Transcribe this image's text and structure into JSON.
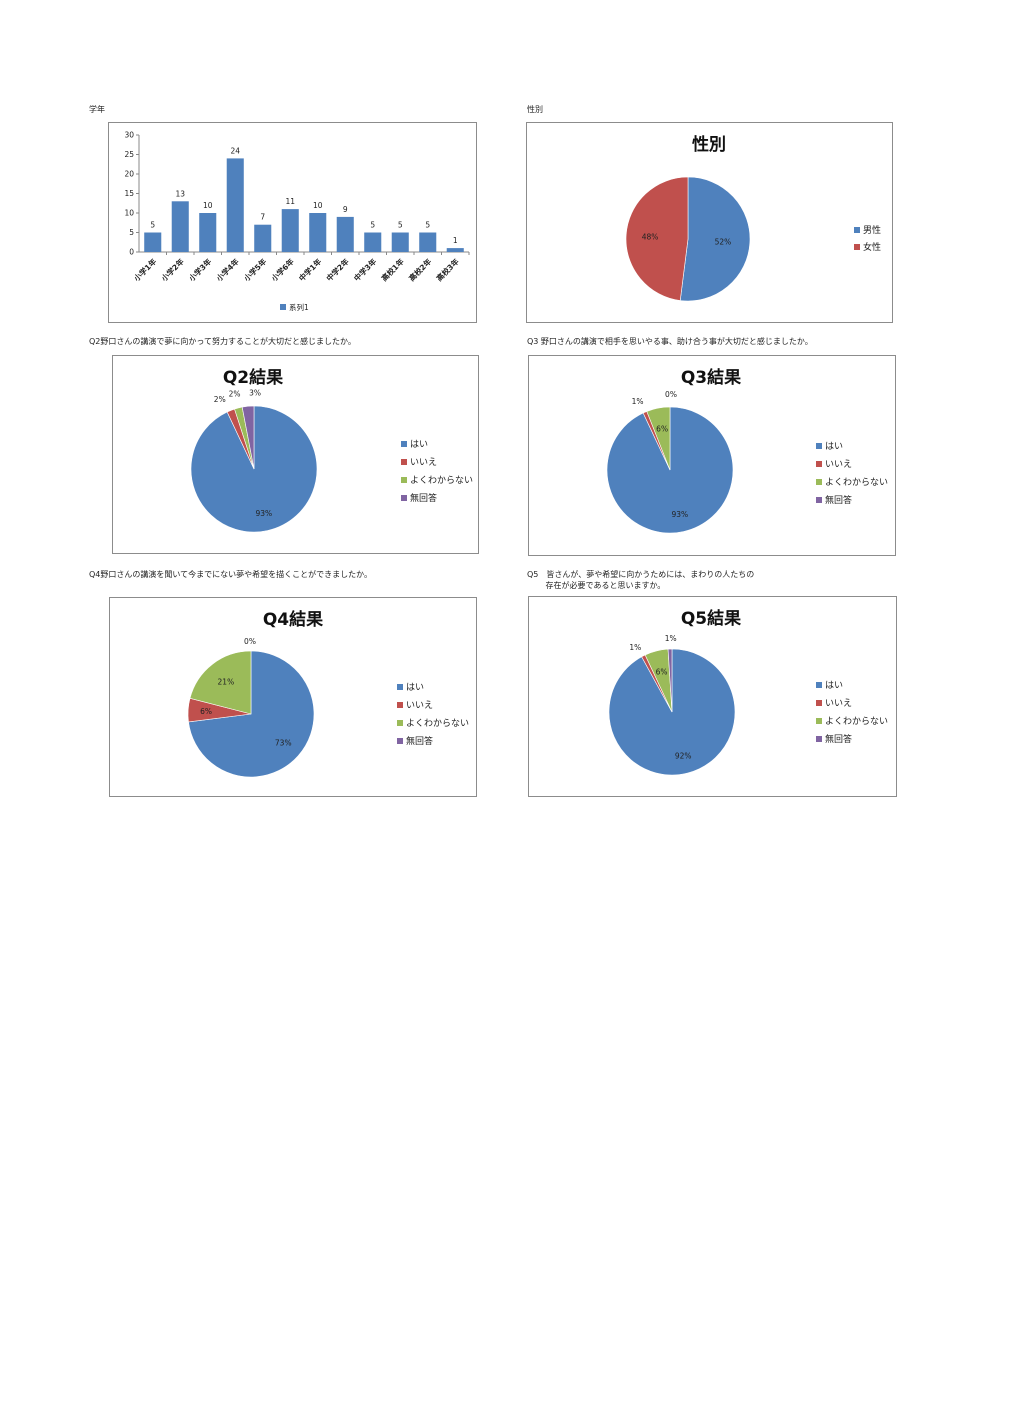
{
  "captions": {
    "grade": "学年",
    "gender": "性別",
    "q2": "Q2野口さんの講演で夢に向かって努力することが大切だと感じましたか。",
    "q3": "Q3 野口さんの講演で相手を思いやる事、助け合う事が大切だと感じましたか。",
    "q4": "Q4野口さんの講演を聞いて今までにない夢や希望を描くことができましたか。",
    "q5_line1": "Q5　皆さんが、夢や希望に向かうためには、まわりの人たちの",
    "q5_line2": "　　 存在が必要であると思いますか。"
  },
  "colors": {
    "blue": "#4f81bd",
    "red": "#c0504d",
    "green": "#9bbb59",
    "purple": "#8064a2"
  },
  "chart_data": [
    {
      "id": "grade",
      "type": "bar",
      "title": "",
      "categories": [
        "小学1年",
        "小学2年",
        "小学3年",
        "小学4年",
        "小学5年",
        "小学6年",
        "中学1年",
        "中学2年",
        "中学3年",
        "高校1年",
        "高校2年",
        "高校3年"
      ],
      "series": [
        {
          "name": "系列1",
          "values": [
            5,
            13,
            10,
            24,
            7,
            11,
            10,
            9,
            5,
            5,
            5,
            1
          ]
        }
      ],
      "ylim": [
        0,
        30
      ],
      "yticks": [
        "0",
        "5",
        "10",
        "15",
        "20",
        "25",
        "30"
      ],
      "grid": false,
      "legend": "bottom"
    },
    {
      "id": "gender",
      "type": "pie",
      "title": "性別",
      "labels": [
        "男性",
        "女性"
      ],
      "values": [
        52,
        48
      ],
      "value_labels": [
        "52%",
        "48%"
      ],
      "legend": "right"
    },
    {
      "id": "q2",
      "type": "pie",
      "title": "Q2結果",
      "labels": [
        "はい",
        "いいえ",
        "よくわからない",
        "無回答"
      ],
      "values": [
        93,
        2,
        2,
        3
      ],
      "value_labels": [
        "93%",
        "2%",
        "2%",
        "3%"
      ],
      "legend": "right"
    },
    {
      "id": "q3",
      "type": "pie",
      "title": "Q3結果",
      "labels": [
        "はい",
        "いいえ",
        "よくわからない",
        "無回答"
      ],
      "values": [
        93,
        1,
        6,
        0
      ],
      "value_labels": [
        "93%",
        "1%",
        "6%",
        "0%"
      ],
      "legend": "right"
    },
    {
      "id": "q4",
      "type": "pie",
      "title": "Q4結果",
      "labels": [
        "はい",
        "いいえ",
        "よくわからない",
        "無回答"
      ],
      "values": [
        73,
        6,
        21,
        0
      ],
      "value_labels": [
        "73%",
        "6%",
        "21%",
        "0%"
      ],
      "legend": "right"
    },
    {
      "id": "q5",
      "type": "pie",
      "title": "Q5結果",
      "labels": [
        "はい",
        "いいえ",
        "よくわからない",
        "無回答"
      ],
      "values": [
        92,
        1,
        6,
        1
      ],
      "value_labels": [
        "92%",
        "1%",
        "6%",
        "1%"
      ],
      "legend": "right"
    }
  ]
}
